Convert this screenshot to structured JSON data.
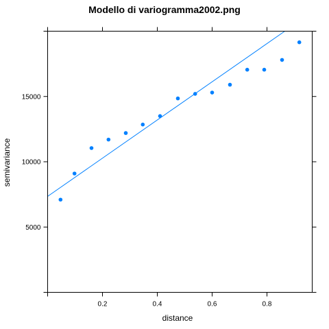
{
  "chart_data": {
    "type": "scatter",
    "title": "Modello di variogramma2002.png",
    "xlabel": "distance",
    "ylabel": "semivariance",
    "xlim": [
      0,
      0.965
    ],
    "ylim": [
      0,
      20000
    ],
    "x_ticks": [
      0.2,
      0.4,
      0.6,
      0.8
    ],
    "x_tick_labels": [
      "0.2",
      "0.4",
      "0.6",
      "0.8"
    ],
    "y_ticks": [
      5000,
      10000,
      15000
    ],
    "y_tick_labels": [
      "5000",
      "10000",
      "15000"
    ],
    "grid": false,
    "points": {
      "x": [
        0.047,
        0.098,
        0.16,
        0.222,
        0.285,
        0.347,
        0.41,
        0.475,
        0.538,
        0.6,
        0.665,
        0.728,
        0.79,
        0.855,
        0.918
      ],
      "y": [
        7100,
        9100,
        11050,
        11700,
        12200,
        12850,
        13500,
        14850,
        15200,
        15300,
        15900,
        17050,
        17050,
        17800,
        19150
      ]
    },
    "fit_line": {
      "x": [
        0,
        0.865
      ],
      "y": [
        7350,
        20000
      ]
    },
    "color": "#0080ff"
  }
}
